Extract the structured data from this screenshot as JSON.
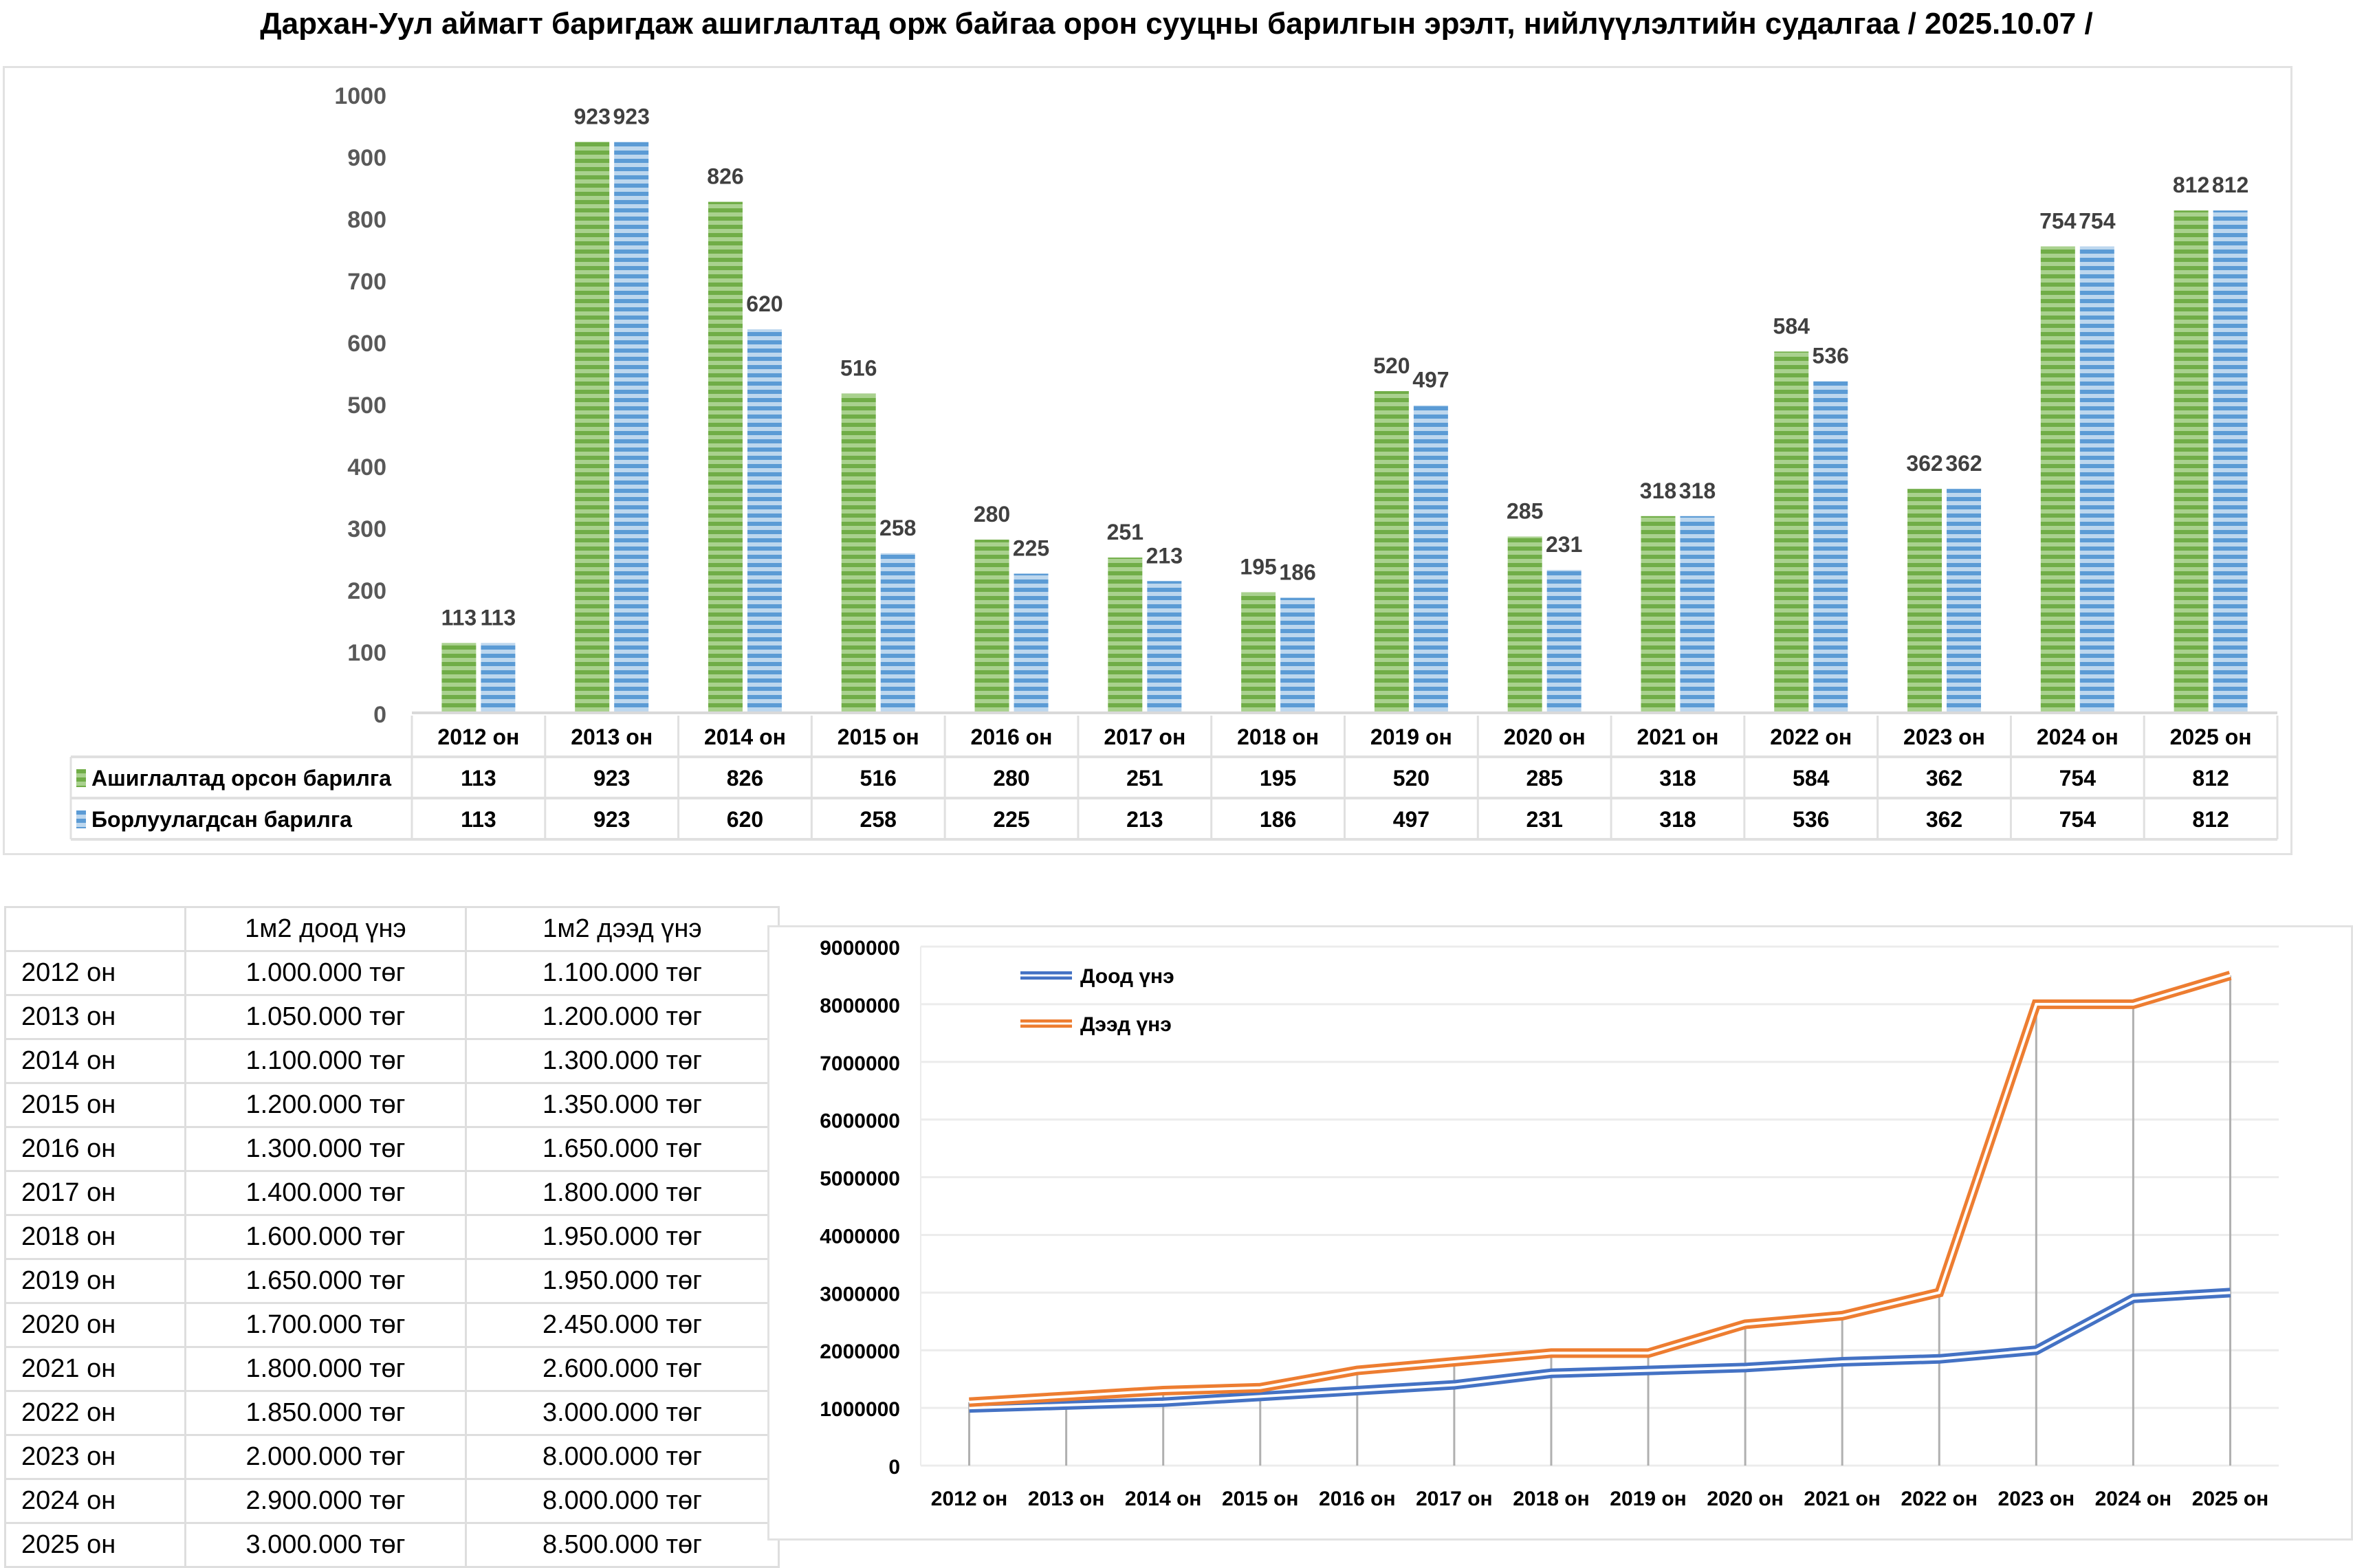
{
  "title": "Дархан-Уул аймагт баригдаж ашиглалтад орж байгаа орон сууцны барилгын эрэлт, нийлүүлэлтийн судалгаа / 2025.10.07 /",
  "chart_data": [
    {
      "type": "bar",
      "title": "",
      "xlabel": "",
      "ylabel": "",
      "ylim": [
        0,
        1000
      ],
      "yticks": [
        0,
        100,
        200,
        300,
        400,
        500,
        600,
        700,
        800,
        900,
        1000
      ],
      "grid": false,
      "legend": "data-table",
      "categories": [
        "2012 он",
        "2013 он",
        "2014 он",
        "2015 он",
        "2016 он",
        "2017 он",
        "2018 он",
        "2019 он",
        "2020 он",
        "2021 он",
        "2022 он",
        "2023  он",
        "2024  он",
        "2025 он"
      ],
      "series": [
        {
          "name": "Ашиглалтад орсон барилга",
          "color": "#70ad47",
          "values": [
            113,
            923,
            826,
            516,
            280,
            251,
            195,
            520,
            285,
            318,
            584,
            362,
            754,
            812
          ]
        },
        {
          "name": "Борлуулагдсан барилга",
          "color": "#5b9bd5",
          "values": [
            113,
            923,
            620,
            258,
            225,
            213,
            186,
            497,
            231,
            318,
            536,
            362,
            754,
            812
          ]
        }
      ]
    },
    {
      "type": "line",
      "title": "",
      "xlabel": "",
      "ylabel": "",
      "ylim": [
        0,
        9000000
      ],
      "yticks": [
        0,
        1000000,
        2000000,
        3000000,
        4000000,
        5000000,
        6000000,
        7000000,
        8000000,
        9000000
      ],
      "grid": true,
      "legend": "top-left",
      "categories": [
        "2012 он",
        "2013 он",
        "2014 он",
        "2015 он",
        "2016 он",
        "2017 он",
        "2018 он",
        "2019 он",
        "2020 он",
        "2021 он",
        "2022 он",
        "2023 он",
        "2024 он",
        "2025 он"
      ],
      "series": [
        {
          "name": "Доод үнэ",
          "color": "#4472c4",
          "values": [
            1000000,
            1050000,
            1100000,
            1200000,
            1300000,
            1400000,
            1600000,
            1650000,
            1700000,
            1800000,
            1850000,
            2000000,
            2900000,
            3000000
          ]
        },
        {
          "name": "Дээд үнэ",
          "color": "#ed7d31",
          "values": [
            1100000,
            1200000,
            1300000,
            1350000,
            1650000,
            1800000,
            1950000,
            1950000,
            2450000,
            2600000,
            3000000,
            8000000,
            8000000,
            8500000
          ]
        }
      ]
    }
  ],
  "price_table": {
    "headers": [
      "",
      "1м2 доод үнэ",
      "1м2 дээд үнэ"
    ],
    "rows": [
      [
        "2012 он",
        "1.000.000 төг",
        "1.100.000  төг"
      ],
      [
        "2013 он",
        "1.050.000  төг",
        "1.200.000  төг"
      ],
      [
        "2014 он",
        "1.100.000  төг",
        "1.300.000  төг"
      ],
      [
        "2015 он",
        "1.200.000  төг",
        "1.350.000  төг"
      ],
      [
        "2016 он",
        "1.300.000  төг",
        "1.650.000  төг"
      ],
      [
        "2017 он",
        "1.400.000  төг",
        "1.800.000  төг"
      ],
      [
        "2018 он",
        "1.600.000  төг",
        "1.950.000  төг"
      ],
      [
        "2019 он",
        "1.650.000  төг",
        "1.950.000  төг"
      ],
      [
        "2020 он",
        "1.700.000  төг",
        "2.450.000  төг"
      ],
      [
        "2021 он",
        "1.800.000  төг",
        "2.600.000  төг"
      ],
      [
        "2022 он",
        "1.850.000  төг",
        "3.000.000  төг"
      ],
      [
        "2023 он",
        "2.000.000 төг",
        "8.000.000 төг"
      ],
      [
        "2024 он",
        "2.900.000 төг",
        "8.000.000 төг"
      ],
      [
        "2025 он",
        "3.000.000 төг",
        "8.500.000 төг"
      ]
    ]
  }
}
